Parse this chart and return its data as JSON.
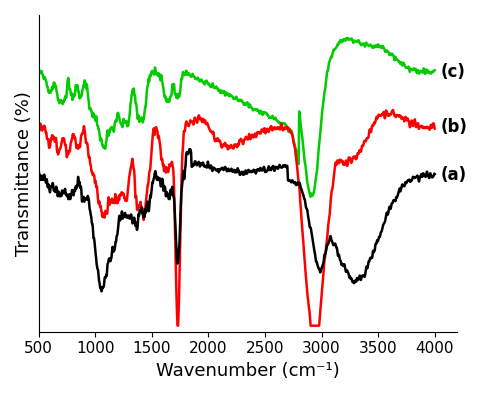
{
  "xlabel": "Wavenumber (cm⁻¹)",
  "ylabel": "Transmittance (%)",
  "xmin": 500,
  "xmax": 4000,
  "line_colors": [
    "#000000",
    "#ff0000",
    "#00cc00"
  ],
  "labels": [
    "(a)",
    "(b)",
    "(c)"
  ],
  "linewidth": 1.8,
  "tick_fontsize": 11,
  "label_fontsize": 12,
  "axis_label_fontsize": 13
}
